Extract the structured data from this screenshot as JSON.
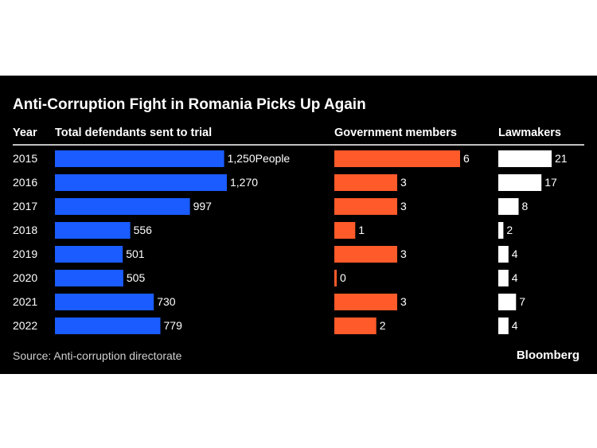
{
  "chart_data": {
    "type": "bar",
    "title": "Anti-Corruption Fight in Romania Picks Up Again",
    "year_header": "Year",
    "categories": [
      "2015",
      "2016",
      "2017",
      "2018",
      "2019",
      "2020",
      "2021",
      "2022"
    ],
    "series": [
      {
        "name": "Total defendants sent to trial",
        "values": [
          1250,
          1270,
          997,
          556,
          501,
          505,
          730,
          779
        ],
        "labels": [
          "1,250People",
          "1,270",
          "997",
          "556",
          "501",
          "505",
          "730",
          "779"
        ],
        "color": "#1a5cff",
        "max": 1270
      },
      {
        "name": "Government members",
        "values": [
          6,
          3,
          3,
          1,
          3,
          0,
          3,
          2
        ],
        "labels": [
          "6",
          "3",
          "3",
          "1",
          "3",
          "0",
          "3",
          "2"
        ],
        "color": "#ff5a2a",
        "max": 6
      },
      {
        "name": "Lawmakers",
        "values": [
          21,
          17,
          8,
          2,
          4,
          4,
          7,
          4
        ],
        "labels": [
          "21",
          "17",
          "8",
          "2",
          "4",
          "4",
          "7",
          "4"
        ],
        "color": "#ffffff",
        "max": 21
      }
    ],
    "legend": "none"
  },
  "source": "Source: Anti-corruption directorate",
  "brand": "Bloomberg"
}
